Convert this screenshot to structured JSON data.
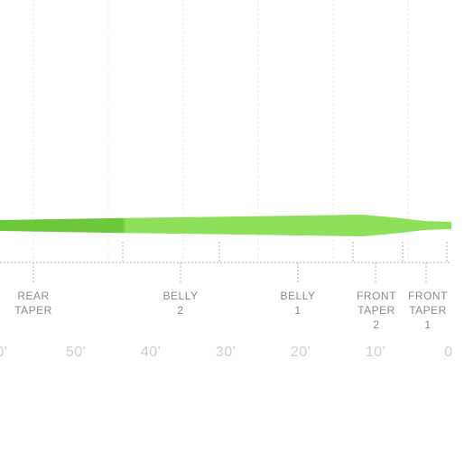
{
  "colors": {
    "line_dark": "#6cc83a",
    "line_light": "#8ee05a",
    "grid": "#e6e6e6",
    "dots": "#b5b5b5",
    "text": "#8a8a8a",
    "distance_text": "#cfcfcf"
  },
  "segments": [
    {
      "name": "rear-taper",
      "line1": "REAR",
      "line2": "TAPER",
      "line3": ""
    },
    {
      "name": "belly-2",
      "line1": "BELLY",
      "line2": "2",
      "line3": ""
    },
    {
      "name": "belly-1",
      "line1": "BELLY",
      "line2": "1",
      "line3": ""
    },
    {
      "name": "front-taper-2",
      "line1": "FRONT",
      "line2": "TAPER",
      "line3": "2"
    },
    {
      "name": "front-taper-1",
      "line1": "FRONT",
      "line2": "TAPER",
      "line3": "1"
    }
  ],
  "distance_labels": [
    "0'",
    "50'",
    "40'",
    "30'",
    "20'",
    "10'",
    "0"
  ]
}
